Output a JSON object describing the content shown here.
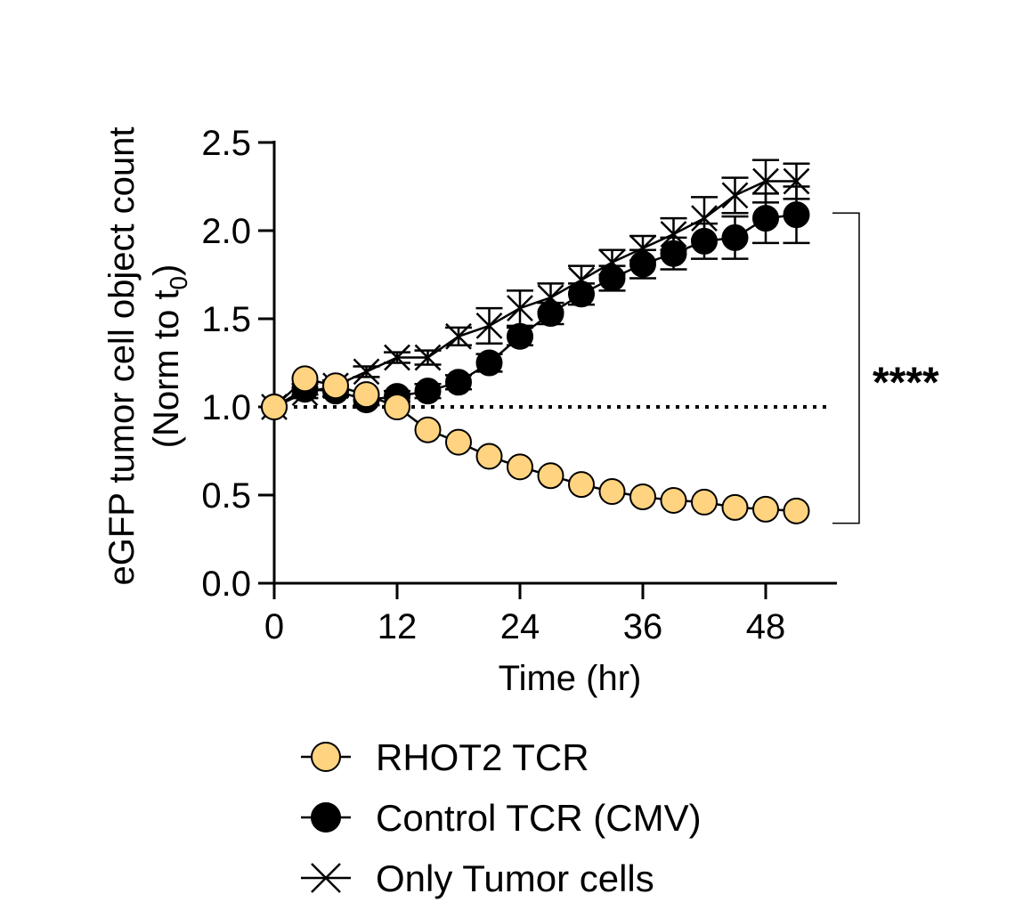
{
  "chart_data": {
    "type": "line",
    "title": "",
    "xlabel": "Time (hr)",
    "ylabel": "eGFP tumor cell object count",
    "ylabel_line2": "(Norm to t",
    "ylabel_sub": "0",
    "ylabel_close": ")",
    "xlim": [
      0,
      55
    ],
    "ylim": [
      0,
      2.5
    ],
    "xticks": [
      0,
      12,
      24,
      36,
      48
    ],
    "xtick_labels": [
      "0",
      "12",
      "24",
      "36",
      "48"
    ],
    "yticks": [
      0.0,
      0.5,
      1.0,
      1.5,
      2.0,
      2.5
    ],
    "ytick_labels": [
      "0.0",
      "0.5",
      "1.0",
      "1.5",
      "2.0",
      "2.5"
    ],
    "reference_line": {
      "y": 1.0,
      "style": "dotted"
    },
    "significance": {
      "label": "****",
      "from_y": 2.1,
      "to_y": 0.34
    },
    "x": [
      0,
      3,
      6,
      9,
      12,
      15,
      18,
      21,
      24,
      27,
      30,
      33,
      36,
      39,
      42,
      45,
      48,
      51
    ],
    "series": [
      {
        "name": "RHOT2 TCR",
        "marker": "circle",
        "color": "#ffd37f",
        "values": [
          1.0,
          1.16,
          1.12,
          1.07,
          1.0,
          0.87,
          0.8,
          0.72,
          0.66,
          0.61,
          0.56,
          0.52,
          0.49,
          0.47,
          0.46,
          0.43,
          0.42,
          0.41
        ],
        "errors": [
          0,
          0.02,
          0.02,
          0.02,
          0.02,
          0.02,
          0.02,
          0.02,
          0.02,
          0.02,
          0.02,
          0.02,
          0.02,
          0.02,
          0.02,
          0.02,
          0.02,
          0.02
        ]
      },
      {
        "name": "Control TCR (CMV)",
        "marker": "filled-circle",
        "color": "#000000",
        "values": [
          1.0,
          1.1,
          1.09,
          1.04,
          1.06,
          1.09,
          1.14,
          1.25,
          1.4,
          1.53,
          1.64,
          1.73,
          1.81,
          1.87,
          1.94,
          1.96,
          2.07,
          2.09
        ],
        "errors": [
          0,
          0.03,
          0.03,
          0.03,
          0.03,
          0.04,
          0.04,
          0.05,
          0.05,
          0.06,
          0.06,
          0.07,
          0.08,
          0.09,
          0.1,
          0.12,
          0.14,
          0.16
        ]
      },
      {
        "name": "Only Tumor cells",
        "marker": "x",
        "color": "#000000",
        "values": [
          1.0,
          1.08,
          1.12,
          1.2,
          1.28,
          1.28,
          1.4,
          1.46,
          1.56,
          1.62,
          1.72,
          1.82,
          1.9,
          1.98,
          2.07,
          2.2,
          2.28,
          2.28
        ],
        "errors": [
          0,
          0.03,
          0.03,
          0.03,
          0.03,
          0.04,
          0.05,
          0.1,
          0.1,
          0.08,
          0.08,
          0.07,
          0.07,
          0.09,
          0.12,
          0.1,
          0.12,
          0.1
        ]
      }
    ]
  }
}
